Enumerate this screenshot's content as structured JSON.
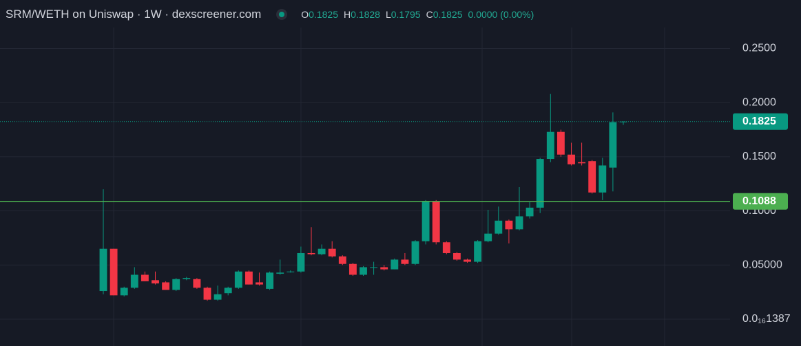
{
  "chart_data": {
    "type": "candlestick",
    "title": "SRM/WETH on Uniswap · 1W · dexscreener.com",
    "ohlc_labels": [
      "O",
      "H",
      "L",
      "C"
    ],
    "ohlc_values": [
      0.1825,
      0.1828,
      0.1795,
      0.1825
    ],
    "change": "0.0000 (0.00%)",
    "open": [
      0.026,
      0.065,
      0.022,
      0.029,
      0.041,
      0.036,
      0.034,
      0.027,
      0.037,
      0.037,
      0.029,
      0.018,
      0.024,
      0.029,
      0.044,
      0.034,
      0.028,
      0.042,
      0.044,
      0.044,
      0.061,
      0.06,
      0.065,
      0.058,
      0.051,
      0.041,
      0.048,
      0.048,
      0.046,
      0.055,
      0.051,
      0.072,
      0.109,
      0.071,
      0.061,
      0.055,
      0.053,
      0.072,
      0.079,
      0.091,
      0.083,
      0.095,
      0.103,
      0.148,
      0.173,
      0.152,
      0.145,
      0.146,
      0.117,
      0.14,
      0.1825
    ],
    "high": [
      0.12,
      0.065,
      0.03,
      0.048,
      0.044,
      0.044,
      0.035,
      0.038,
      0.039,
      0.038,
      0.03,
      0.031,
      0.03,
      0.045,
      0.045,
      0.043,
      0.044,
      0.055,
      0.045,
      0.067,
      0.085,
      0.069,
      0.072,
      0.059,
      0.052,
      0.049,
      0.053,
      0.05,
      0.056,
      0.061,
      0.073,
      0.11,
      0.11,
      0.072,
      0.062,
      0.056,
      0.073,
      0.101,
      0.104,
      0.092,
      0.122,
      0.108,
      0.149,
      0.208,
      0.175,
      0.163,
      0.163,
      0.147,
      0.149,
      0.191,
      0.1828
    ],
    "low": [
      0.023,
      0.022,
      0.021,
      0.028,
      0.035,
      0.032,
      0.027,
      0.026,
      0.036,
      0.028,
      0.017,
      0.017,
      0.022,
      0.028,
      0.032,
      0.031,
      0.027,
      0.041,
      0.043,
      0.043,
      0.059,
      0.059,
      0.057,
      0.05,
      0.04,
      0.04,
      0.041,
      0.045,
      0.046,
      0.05,
      0.05,
      0.069,
      0.069,
      0.06,
      0.054,
      0.052,
      0.052,
      0.071,
      0.078,
      0.07,
      0.082,
      0.093,
      0.098,
      0.145,
      0.15,
      0.142,
      0.142,
      0.116,
      0.11,
      0.118,
      0.1795
    ],
    "close": [
      0.065,
      0.022,
      0.029,
      0.041,
      0.035,
      0.033,
      0.027,
      0.037,
      0.038,
      0.029,
      0.018,
      0.023,
      0.029,
      0.044,
      0.032,
      0.032,
      0.043,
      0.043,
      0.044,
      0.061,
      0.06,
      0.065,
      0.058,
      0.051,
      0.041,
      0.048,
      0.048,
      0.046,
      0.055,
      0.051,
      0.072,
      0.109,
      0.071,
      0.061,
      0.055,
      0.053,
      0.072,
      0.079,
      0.091,
      0.083,
      0.095,
      0.103,
      0.148,
      0.173,
      0.152,
      0.143,
      0.144,
      0.117,
      0.142,
      0.182,
      0.1825
    ],
    "up_color": "#089981",
    "down_color": "#f23645",
    "ylim": [
      -0.0248,
      0.2694
    ],
    "yticks": [
      {
        "value": 1.387e-17,
        "label": "0.0₁₆1387"
      },
      {
        "value": 0.05,
        "label": "0.05000"
      },
      {
        "value": 0.1,
        "label": "0.1000"
      },
      {
        "value": 0.15,
        "label": "0.1500"
      },
      {
        "value": 0.2,
        "label": "0.2000"
      },
      {
        "value": 0.25,
        "label": "0.2500"
      }
    ],
    "grid": true,
    "last_price": 0.1825,
    "level": 0.1088,
    "level_color": "#4caf50"
  }
}
